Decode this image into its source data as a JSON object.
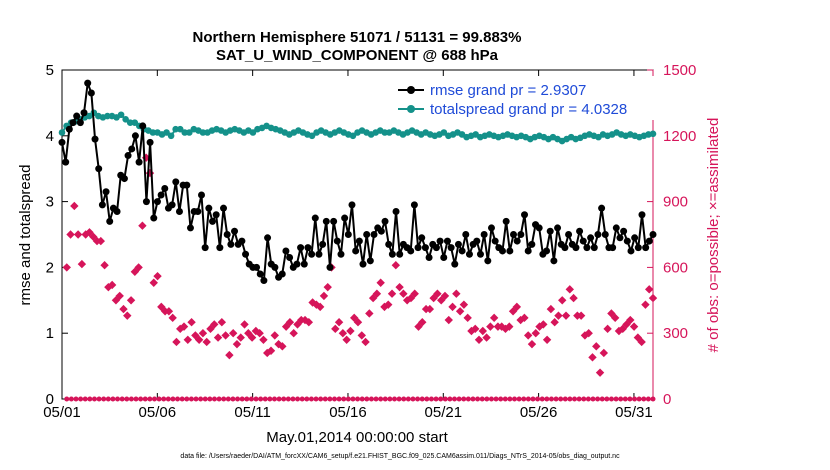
{
  "chart_data": {
    "type": "line",
    "title_line1": "Northern Hemisphere 51071 / 51131 = 99.883%",
    "title_line2": "SAT_U_WIND_COMPONENT @ 688 hPa",
    "xlabel": "May.01,2014 00:00:00 start",
    "ylabel_left": "rmse and totalspread",
    "ylabel_right": "# of obs: o=possible; ×=assimilated",
    "footer": "data file: /Users/raeder/DAI/ATM_forcXX/CAM6_setup/f.e21.FHIST_BGC.f09_025.CAM6assim.011/Diags_NTrS_2014-05/obs_diag_output.nc",
    "x_ticks": [
      {
        "day": 1,
        "label": "05/01"
      },
      {
        "day": 6,
        "label": "05/06"
      },
      {
        "day": 11,
        "label": "05/11"
      },
      {
        "day": 16,
        "label": "05/16"
      },
      {
        "day": 21,
        "label": "05/21"
      },
      {
        "day": 26,
        "label": "05/26"
      },
      {
        "day": 31,
        "label": "05/31"
      }
    ],
    "xlim": [
      1,
      32
    ],
    "ylim_left": [
      0,
      5
    ],
    "ylim_right": [
      0,
      1500
    ],
    "y_ticks_left": [
      "0",
      "1",
      "2",
      "3",
      "4",
      "5"
    ],
    "y_ticks_right": [
      "0",
      "300",
      "600",
      "900",
      "1200",
      "1500"
    ],
    "colors": {
      "rmse": "#000000",
      "spread": "#14918a",
      "obs": "#d6155a",
      "legend_text": "#1f4bd8"
    },
    "legend": [
      {
        "label": "rmse grand pr = 2.9307",
        "series": "rmse"
      },
      {
        "label": "totalspread grand pr = 4.0328",
        "series": "spread"
      }
    ],
    "series": [
      {
        "name": "rmse",
        "axis": "left",
        "values": [
          3.9,
          3.6,
          4.1,
          4.2,
          4.3,
          4.2,
          4.35,
          4.8,
          4.65,
          3.95,
          3.5,
          2.95,
          3.15,
          2.7,
          2.9,
          2.85,
          3.4,
          3.35,
          3.7,
          3.8,
          4.0,
          3.6,
          4.15,
          3.0,
          3.9,
          2.75,
          3.0,
          3.1,
          3.2,
          2.9,
          2.95,
          3.3,
          2.85,
          3.25,
          3.25,
          2.6,
          2.85,
          2.85,
          3.1,
          2.3,
          2.9,
          2.7,
          2.8,
          2.3,
          2.9,
          2.5,
          2.35,
          2.55,
          2.35,
          2.4,
          2.2,
          2.05,
          2.0,
          2.0,
          1.9,
          1.8,
          2.45,
          2.05,
          2.0,
          1.85,
          1.9,
          2.25,
          2.15,
          2.0,
          2.05,
          2.3,
          2.05,
          2.3,
          2.2,
          2.75,
          2.2,
          2.35,
          2.7,
          2.0,
          2.7,
          2.4,
          2.2,
          2.75,
          2.5,
          2.95,
          2.25,
          2.4,
          2.05,
          2.5,
          2.1,
          2.5,
          2.6,
          2.55,
          2.7,
          2.35,
          2.2,
          2.85,
          2.2,
          2.35,
          2.3,
          2.25,
          2.95,
          2.3,
          2.45,
          2.3,
          2.15,
          2.35,
          2.3,
          2.4,
          2.15,
          2.4,
          2.3,
          2.05,
          2.35,
          2.25,
          2.5,
          2.2,
          2.35,
          2.4,
          2.2,
          2.5,
          2.1,
          2.6,
          2.4,
          2.3,
          2.25,
          2.7,
          2.25,
          2.5,
          2.4,
          2.5,
          2.8,
          2.25,
          2.35,
          2.65,
          2.6,
          2.2,
          2.25,
          2.55,
          2.1,
          2.6,
          2.35,
          2.3,
          2.5,
          2.35,
          2.3,
          2.55,
          2.4,
          2.3,
          2.45,
          2.3,
          2.5,
          2.9,
          2.5,
          2.3,
          2.3,
          2.6,
          2.45,
          2.55,
          2.4,
          2.25,
          2.45,
          2.3,
          2.8,
          2.3,
          2.4,
          2.5
        ]
      },
      {
        "name": "spread",
        "axis": "left",
        "values": [
          4.05,
          4.15,
          4.2,
          4.22,
          4.25,
          4.28,
          4.3,
          4.35,
          4.3,
          4.28,
          4.3,
          4.3,
          4.28,
          4.32,
          4.25,
          4.2,
          4.2,
          4.15,
          4.1,
          4.08,
          4.05,
          4.05,
          4.02,
          4.05,
          4.0,
          4.1,
          4.1,
          4.05,
          4.05,
          4.1,
          4.08,
          4.05,
          4.05,
          4.08,
          4.1,
          4.08,
          4.05,
          4.08,
          4.1,
          4.08,
          4.05,
          4.08,
          4.05,
          4.1,
          4.12,
          4.15,
          4.12,
          4.1,
          4.08,
          4.05,
          4.02,
          4.05,
          4.08,
          4.05,
          4.02,
          4.0,
          4.05,
          4.08,
          4.05,
          4.02,
          4.05,
          4.08,
          4.05,
          4.02,
          4.0,
          4.05,
          4.08,
          4.05,
          4.02,
          4.05,
          4.08,
          4.05,
          4.05,
          4.08,
          4.05,
          4.02,
          4.05,
          4.08,
          4.05,
          4.02,
          4.05,
          4.02,
          4.0,
          4.02,
          4.05,
          4.0,
          4.02,
          4.05,
          4.02,
          3.98,
          4.0,
          4.02,
          3.98,
          4.0,
          4.02,
          4.0,
          3.98,
          4.0,
          4.02,
          4.0,
          3.98,
          4.0,
          3.98,
          3.95,
          3.98,
          4.0,
          3.98,
          3.95,
          3.98,
          3.95,
          3.92,
          3.95,
          3.98,
          3.95,
          3.97,
          4.0,
          4.02,
          4.0,
          3.98,
          4.02,
          4.0,
          4.02,
          4.05,
          4.02,
          4.0,
          4.02,
          4.0,
          3.98,
          4.0,
          4.02,
          4.03
        ]
      },
      {
        "name": "obs_possible",
        "axis": "right",
        "values": [
          0,
          0,
          0,
          0,
          0,
          0,
          0,
          0,
          0,
          0,
          0,
          0,
          0,
          0,
          0,
          0,
          0,
          0,
          0,
          0,
          0,
          0,
          0,
          0,
          0,
          0,
          0,
          0,
          0,
          0,
          0,
          0,
          0,
          0,
          0,
          0,
          0,
          0,
          0,
          0,
          0,
          0,
          0,
          0,
          0,
          0,
          0,
          0,
          0,
          0,
          0,
          0,
          0,
          0,
          0,
          0,
          0,
          0,
          0,
          0,
          0,
          0,
          0,
          0,
          0,
          0,
          0,
          0,
          0,
          0,
          0,
          0,
          0,
          0,
          0,
          0,
          0,
          0,
          0,
          0,
          0,
          0,
          0,
          0,
          0,
          0,
          0,
          0,
          0,
          0,
          0,
          0,
          0,
          0,
          0,
          0,
          0,
          0,
          0,
          0,
          0,
          0,
          0,
          0,
          0,
          0,
          0,
          0,
          0,
          0,
          0,
          0,
          0,
          0,
          0,
          0,
          0,
          0,
          0,
          0,
          0,
          0,
          0,
          0,
          0,
          0,
          0,
          0
        ]
      },
      {
        "name": "obs_assimilated",
        "axis": "right",
        "values": [
          600,
          750,
          880,
          750,
          615,
          750,
          760,
          740,
          720,
          720,
          610,
          510,
          520,
          450,
          470,
          410,
          380,
          450,
          580,
          600,
          790,
          1100,
          1030,
          530,
          560,
          420,
          400,
          400,
          370,
          260,
          320,
          330,
          270,
          350,
          290,
          270,
          300,
          260,
          320,
          340,
          280,
          350,
          290,
          200,
          300,
          250,
          280,
          340,
          300,
          280,
          310,
          300,
          270,
          210,
          220,
          290,
          250,
          240,
          330,
          350,
          300,
          340,
          360,
          360,
          350,
          440,
          430,
          420,
          470,
          510,
          600,
          320,
          350,
          300,
          270,
          310,
          370,
          350,
          290,
          260,
          390,
          460,
          480,
          530,
          420,
          430,
          480,
          610,
          510,
          480,
          450,
          460,
          480,
          330,
          350,
          410,
          410,
          460,
          480,
          450,
          470,
          360,
          420,
          480,
          400,
          430,
          370,
          310,
          320,
          270,
          310,
          280,
          330,
          370,
          330,
          330,
          320,
          330,
          400,
          420,
          360,
          370,
          290,
          250,
          300,
          330,
          340,
          270,
          410,
          350,
          380,
          450,
          380,
          500,
          460,
          380,
          380,
          290,
          300,
          190,
          240,
          120,
          210,
          320,
          390,
          370,
          310,
          320,
          340,
          360,
          330,
          280,
          260,
          430,
          500,
          460
        ]
      }
    ]
  }
}
